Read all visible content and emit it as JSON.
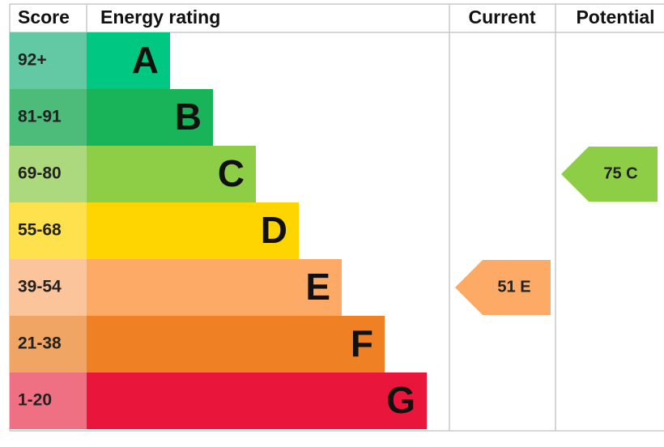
{
  "header": {
    "score": "Score",
    "rating": "Energy rating",
    "current": "Current",
    "potential": "Potential"
  },
  "bands": [
    {
      "score": "92+",
      "letter": "A",
      "color": "#00c781",
      "score_color": "#63c9a5"
    },
    {
      "score": "81-91",
      "letter": "B",
      "color": "#19b459",
      "score_color": "#4dbb7a"
    },
    {
      "score": "69-80",
      "letter": "C",
      "color": "#8dce46",
      "score_color": "#acd97d"
    },
    {
      "score": "55-68",
      "letter": "D",
      "color": "#ffd500",
      "score_color": "#ffe14d"
    },
    {
      "score": "39-54",
      "letter": "E",
      "color": "#fcaa65",
      "score_color": "#fcc49b"
    },
    {
      "score": "21-38",
      "letter": "F",
      "color": "#ef8023",
      "score_color": "#f1a565"
    },
    {
      "score": "1-20",
      "letter": "G",
      "color": "#e9153b",
      "score_color": "#ef7083"
    }
  ],
  "current": {
    "text": "51 E",
    "color": "#fcaa65"
  },
  "potential": {
    "text": "75 C",
    "color": "#8dce46"
  }
}
